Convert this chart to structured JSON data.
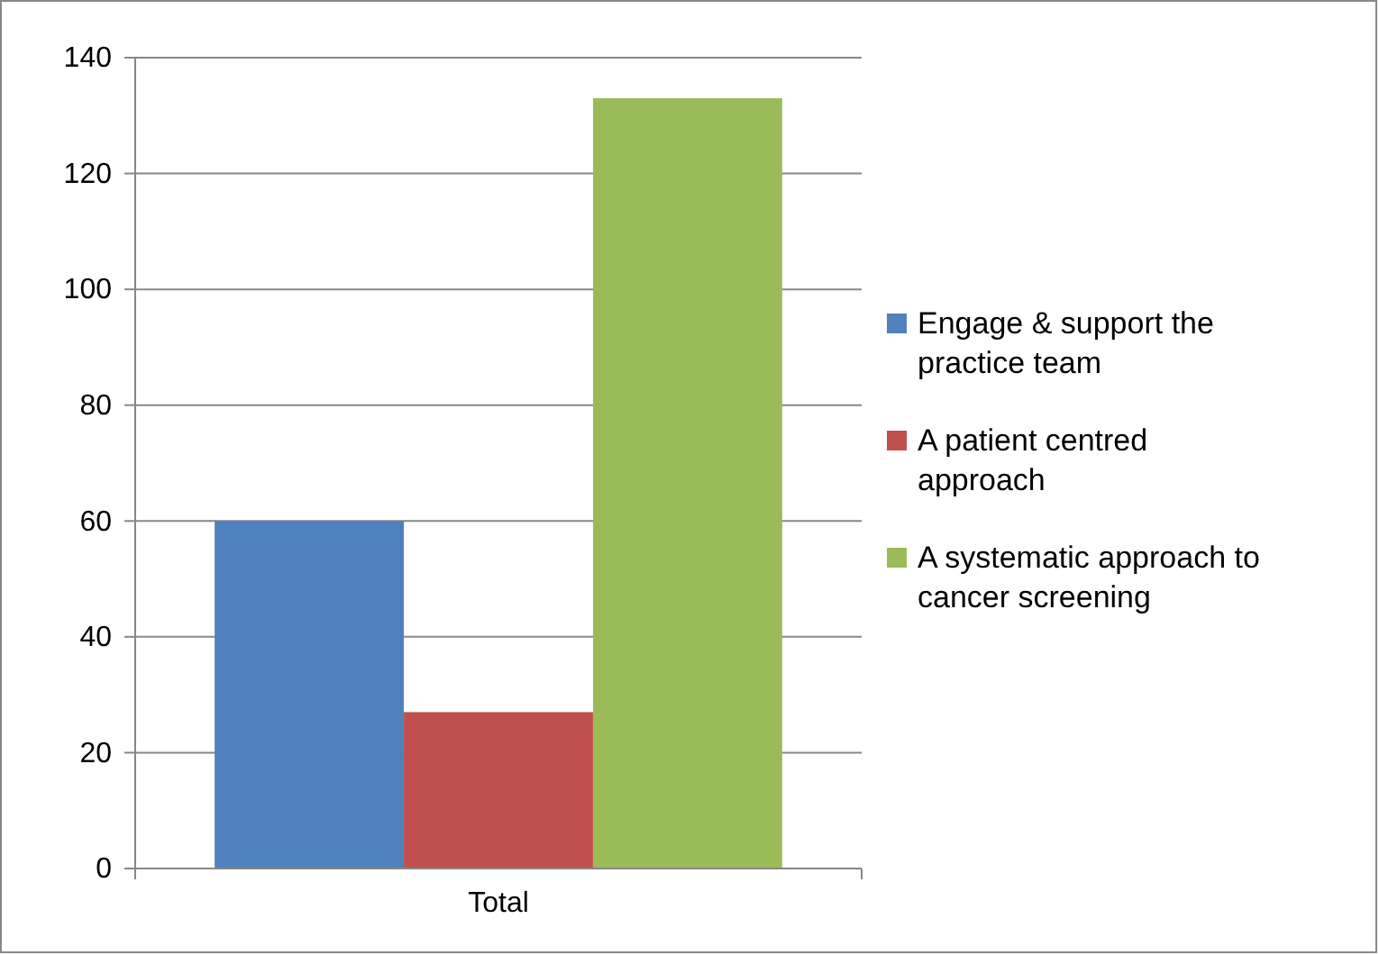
{
  "chart_data": {
    "type": "bar",
    "categories": [
      "Total"
    ],
    "series": [
      {
        "name": "Engage & support the practice team",
        "color": "#4f81bd",
        "values": [
          60
        ]
      },
      {
        "name": "A patient centred approach",
        "color": "#c0504d",
        "values": [
          27
        ]
      },
      {
        "name": "A systematic approach to cancer screening",
        "color": "#9bbb59",
        "values": [
          133
        ]
      }
    ],
    "ylim": [
      0,
      140
    ],
    "yticks": [
      0,
      20,
      40,
      60,
      80,
      100,
      120,
      140
    ],
    "grid": "y",
    "legend": "right"
  }
}
